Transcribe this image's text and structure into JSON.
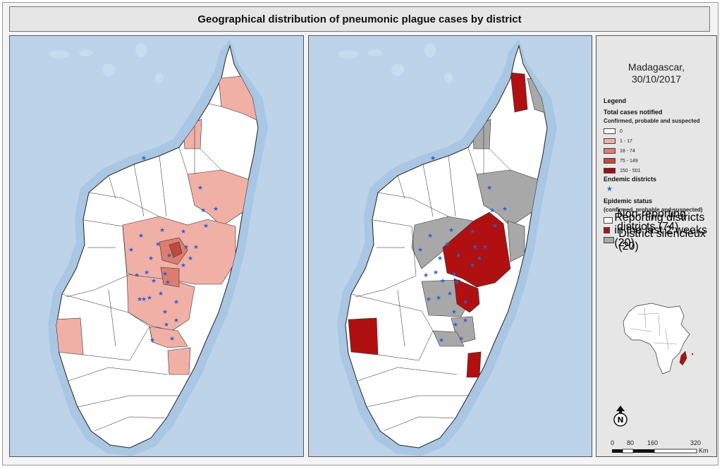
{
  "title": "Geographical distribution of pneumonic plague cases by district",
  "location": {
    "line1": "Madagascar,",
    "line2": "30/10/2017"
  },
  "legend": {
    "heading": "Legend",
    "total_cases_heading": "Total cases notified",
    "total_cases_sub": "Confirmed, probable and suspected",
    "case_classes": [
      {
        "label": "0",
        "color": "#ffffff"
      },
      {
        "label": "1 - 17",
        "color": "#f0b0a6"
      },
      {
        "label": "18 - 74",
        "color": "#dd7d70"
      },
      {
        "label": "75 - 149",
        "color": "#c04a3e"
      },
      {
        "label": "150 - 501",
        "color": "#9c0f12"
      }
    ],
    "endemic_heading": "Endemic districts",
    "endemic_symbol": "★",
    "epidemic_heading": "Epidemic status",
    "epidemic_sub": "(confirmed, probable and suspected)",
    "epidemic_classes": [
      {
        "label": "Non-reporting districts (74)",
        "color": "#ffffff"
      },
      {
        "label": "Reporting districts in the last 2 weeks (20)",
        "color": "#b01012"
      },
      {
        "label": "District silencieux (20)",
        "color": "#a8a8a8"
      }
    ]
  },
  "north_arrow_label": "N",
  "scale_bar": {
    "ticks": [
      "0",
      "80",
      "160",
      "320"
    ],
    "unit": "Km"
  },
  "colors": {
    "sea": "#bcd3ea",
    "land": "#ffffff",
    "endemic_star": "#2b5fd9"
  }
}
